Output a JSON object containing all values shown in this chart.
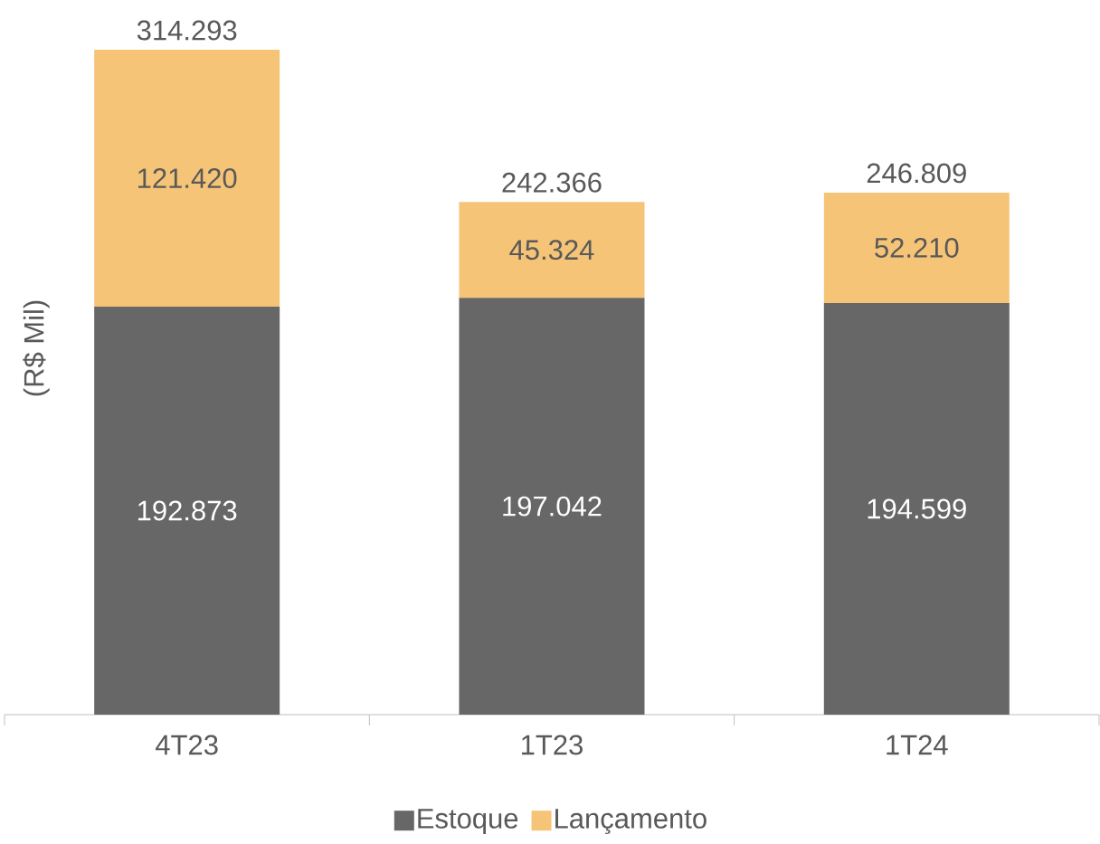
{
  "chart_data": {
    "type": "bar",
    "stacked": true,
    "ylabel": "(R$ Mil)",
    "categories": [
      "4T23",
      "1T23",
      "1T24"
    ],
    "series": [
      {
        "name": "Estoque",
        "color": "#666766",
        "values": [
          192873,
          197042,
          194599
        ],
        "value_labels": [
          "192.873",
          "197.042",
          "194.599"
        ]
      },
      {
        "name": "Lançamento",
        "color": "#f6c477",
        "values": [
          121420,
          45324,
          52210
        ],
        "value_labels": [
          "121.420",
          "45.324",
          "52.210"
        ]
      }
    ],
    "totals": [
      "314.293",
      "242.366",
      "246.809"
    ],
    "legend": "bottom"
  }
}
